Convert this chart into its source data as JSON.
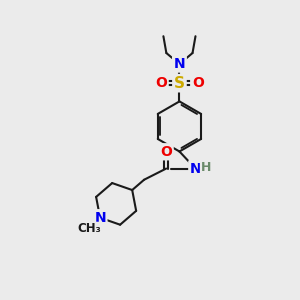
{
  "bg_color": "#ebebeb",
  "atom_colors": {
    "C": "#1a1a1a",
    "N": "#0000ee",
    "O": "#ee0000",
    "S": "#ccaa00",
    "H": "#6a8a6a"
  },
  "bond_color": "#1a1a1a",
  "bond_width": 1.5,
  "figsize": [
    3.0,
    3.0
  ],
  "dpi": 100,
  "xlim": [
    0,
    10
  ],
  "ylim": [
    0,
    10
  ]
}
